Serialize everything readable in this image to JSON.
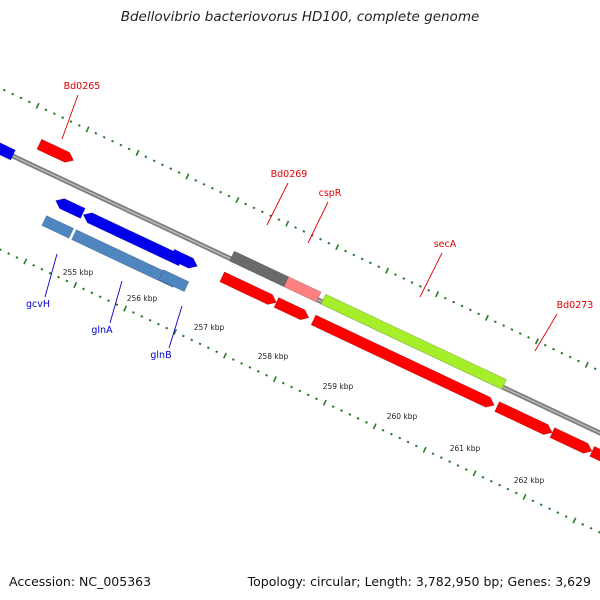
{
  "title": "Bdellovibrio bacteriovorus HD100, complete genome",
  "footer": {
    "accession": "Accession: NC_005363",
    "topology": "Topology: circular; Length: 3,782,950 bp; Genes: 3,629"
  },
  "colors": {
    "backbone": "#808080",
    "tick": "#2a7a2a",
    "red": "#ff0000",
    "blue": "#0000ee",
    "steelblue": "#4f86c0",
    "gray": "#6a6a6a",
    "pink": "#ff8080",
    "lime": "#a4ee2a",
    "label_red": "#dd0000",
    "label_blue": "#0000cc"
  },
  "kbp_ticks": [
    "255 kbp",
    "256 kbp",
    "257 kbp",
    "258 kbp",
    "259 kbp",
    "260 kbp",
    "261 kbp",
    "262 kbp"
  ],
  "gene_labels": {
    "Bd0265": "Bd0265",
    "Bd0269": "Bd0269",
    "cspR": "cspR",
    "secA": "secA",
    "Bd0273": "Bd0273",
    "gcvH": "gcvH",
    "glnA": "glnA",
    "glnB": "glnB"
  }
}
